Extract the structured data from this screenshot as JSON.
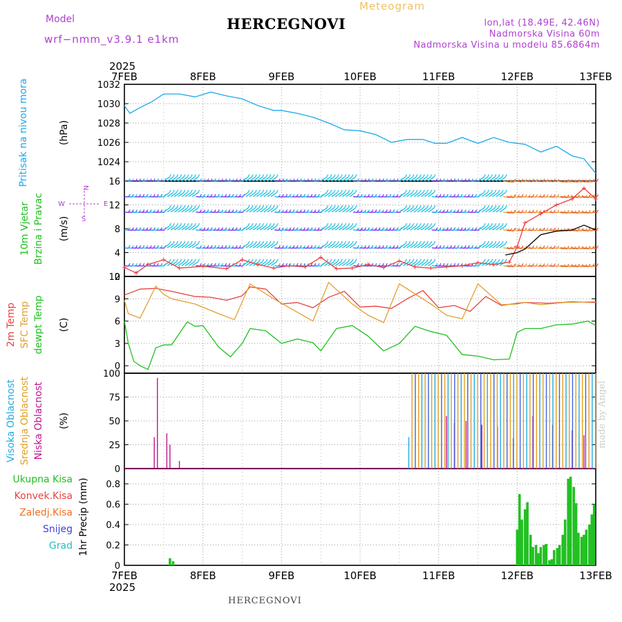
{
  "header": {
    "title": "HERCEGNOVI",
    "subtitle": "Meteogram",
    "model_label": "Model",
    "model_name": "wrf−nmm_v3.9.1 e1km",
    "location_lines": [
      "lon,lat (18.49E, 42.46N)",
      "Nadmorska Visina 60m",
      "Nadmorska Visina u modelu 85.6864m"
    ],
    "footer": "HERCEGNOVI",
    "credit": "made by Angel"
  },
  "time_axis": {
    "year": "2025",
    "ticks": [
      "7FEB",
      "8FEB",
      "9FEB",
      "10FEB",
      "11FEB",
      "12FEB",
      "13FEB"
    ],
    "range_days": [
      0,
      6
    ]
  },
  "colors": {
    "pressure": "#1ba8e8",
    "temp2m": "#e84040",
    "sfc": "#e0a030",
    "dew": "#20c020",
    "precip": "#22c022",
    "high_cloud": "#22aadd",
    "mid_cloud": "#e0a020",
    "low_cloud": "#c0158f",
    "wind_speed": "#e84040",
    "gust": "#000000"
  },
  "chart_data": [
    {
      "type": "line",
      "title": "",
      "ylabels": [
        {
          "text": "Pritisak na nivou mora",
          "color": "#1ba8e8"
        }
      ],
      "unit": "(hPa)",
      "ylim": [
        1022,
        1032
      ],
      "yticks": [
        1024,
        1026,
        1028,
        1030,
        1032
      ],
      "grid": true,
      "series": [
        {
          "color": "#1ba8e8",
          "x": [
            0,
            0.07,
            0.2,
            0.35,
            0.5,
            0.7,
            0.9,
            1.1,
            1.3,
            1.5,
            1.7,
            1.9,
            2.0,
            2.2,
            2.4,
            2.6,
            2.8,
            3.0,
            3.2,
            3.4,
            3.6,
            3.8,
            3.95,
            4.1,
            4.3,
            4.5,
            4.7,
            4.9,
            5.1,
            5.3,
            5.5,
            5.7,
            5.85,
            6.0
          ],
          "y": [
            1029.8,
            1029.0,
            1029.6,
            1030.2,
            1031.0,
            1031.0,
            1030.7,
            1031.2,
            1030.8,
            1030.5,
            1029.8,
            1029.3,
            1029.3,
            1029.0,
            1028.6,
            1028.0,
            1027.3,
            1027.2,
            1026.8,
            1026.0,
            1026.3,
            1026.3,
            1025.9,
            1025.9,
            1026.5,
            1025.9,
            1026.5,
            1026.0,
            1025.8,
            1025.0,
            1025.6,
            1024.6,
            1024.3,
            1022.8
          ]
        }
      ]
    },
    {
      "type": "line",
      "title": "",
      "ylabels": [
        {
          "text": "10m Vjetar",
          "color": "#20c020"
        },
        {
          "text": "Brzina i Pravac",
          "color": "#20c020"
        }
      ],
      "unit": "(m/s)",
      "compass": [
        "N",
        "E",
        "S",
        "W"
      ],
      "ylim": [
        0,
        16
      ],
      "yticks": [
        0,
        4,
        8,
        12,
        16
      ],
      "grid": true,
      "barb_rows": [
        1.8,
        4.8,
        7.8,
        10.8,
        13.4,
        16
      ],
      "series": [
        {
          "color": "#e84040",
          "markers": "plus",
          "x": [
            0,
            0.15,
            0.3,
            0.5,
            0.7,
            1.0,
            1.3,
            1.5,
            1.7,
            1.9,
            2.1,
            2.3,
            2.5,
            2.7,
            2.9,
            3.1,
            3.3,
            3.5,
            3.7,
            3.9,
            4.1,
            4.3,
            4.5,
            4.7,
            4.9,
            5.0,
            5.1,
            5.3,
            5.5,
            5.7,
            5.85,
            6.0
          ],
          "y": [
            1.5,
            0.6,
            2.0,
            2.8,
            1.4,
            1.7,
            1.3,
            2.8,
            2.0,
            1.4,
            1.8,
            1.6,
            3.2,
            1.3,
            1.4,
            2.0,
            1.5,
            2.6,
            1.6,
            1.4,
            1.6,
            1.8,
            2.3,
            2.0,
            2.4,
            5.0,
            9.0,
            10.5,
            12.0,
            13.0,
            14.8,
            13.0
          ]
        },
        {
          "color": "#000000",
          "markers": "none",
          "x": [
            4.85,
            5.0,
            5.1,
            5.3,
            5.5,
            5.7,
            5.85,
            6.0
          ],
          "y": [
            3.6,
            4.0,
            4.6,
            7.0,
            7.6,
            7.8,
            8.6,
            7.8
          ]
        }
      ]
    },
    {
      "type": "line",
      "title": "",
      "ylabels": [
        {
          "text": "2m Temp",
          "color": "#e84040"
        },
        {
          "text": "SFC Temp",
          "color": "#e0a030"
        },
        {
          "text": "dewpt Temp",
          "color": "#20c020"
        }
      ],
      "unit": "(C)",
      "ylim": [
        -1,
        12
      ],
      "yticks": [
        0,
        3,
        6,
        9,
        12
      ],
      "grid": true,
      "series": [
        {
          "color": "#e84040",
          "x": [
            0,
            0.2,
            0.4,
            0.6,
            0.9,
            1.1,
            1.3,
            1.5,
            1.6,
            1.8,
            2.0,
            2.2,
            2.4,
            2.6,
            2.8,
            3.0,
            3.2,
            3.4,
            3.6,
            3.8,
            4.0,
            4.2,
            4.4,
            4.6,
            4.8,
            5.0,
            5.1,
            5.4,
            5.7,
            6.0
          ],
          "y": [
            9.5,
            10.3,
            10.4,
            10.0,
            9.3,
            9.2,
            8.8,
            9.4,
            10.6,
            10.3,
            8.3,
            8.5,
            7.8,
            9.2,
            10.0,
            7.9,
            8.0,
            7.7,
            9.0,
            10.1,
            7.8,
            8.1,
            7.3,
            9.3,
            8.1,
            8.4,
            8.5,
            8.4,
            8.6,
            8.5
          ]
        },
        {
          "color": "#e0a030",
          "x": [
            0,
            0.05,
            0.2,
            0.4,
            0.5,
            0.6,
            0.9,
            1.2,
            1.4,
            1.6,
            1.9,
            2.2,
            2.4,
            2.6,
            2.9,
            3.1,
            3.3,
            3.5,
            3.9,
            4.1,
            4.3,
            4.5,
            4.8,
            5.0,
            5.1,
            5.3,
            5.6,
            6.0
          ],
          "y": [
            8.8,
            7.0,
            6.4,
            10.7,
            9.6,
            9.0,
            8.3,
            7.0,
            6.2,
            11.0,
            9.0,
            7.2,
            6.0,
            11.2,
            8.3,
            6.8,
            5.8,
            11.0,
            8.3,
            6.8,
            6.3,
            11.0,
            8.2,
            8.3,
            8.5,
            8.2,
            8.5,
            8.6
          ]
        },
        {
          "color": "#20c020",
          "x": [
            0,
            0.05,
            0.12,
            0.2,
            0.3,
            0.4,
            0.5,
            0.6,
            0.8,
            0.9,
            1.0,
            1.2,
            1.35,
            1.5,
            1.6,
            1.8,
            2.0,
            2.2,
            2.4,
            2.5,
            2.7,
            2.9,
            3.1,
            3.3,
            3.5,
            3.7,
            3.9,
            4.1,
            4.3,
            4.5,
            4.7,
            4.9,
            5.0,
            5.1,
            5.3,
            5.5,
            5.7,
            5.9,
            6.0
          ],
          "y": [
            6.0,
            3.0,
            0.6,
            0.0,
            -0.5,
            2.4,
            2.8,
            2.8,
            5.9,
            5.3,
            5.4,
            2.5,
            1.2,
            3.0,
            5.0,
            4.7,
            3.0,
            3.6,
            3.1,
            2.0,
            5.0,
            5.4,
            4.0,
            2.0,
            3.0,
            5.3,
            4.6,
            4.1,
            1.5,
            1.3,
            0.8,
            0.9,
            4.5,
            5.0,
            5.0,
            5.5,
            5.6,
            6.0,
            5.4
          ]
        }
      ]
    },
    {
      "type": "bar",
      "title": "",
      "ylabels": [
        {
          "text": "Visoka Oblacnost",
          "color": "#22aadd"
        },
        {
          "text": "Srednja Oblacnost",
          "color": "#e0a020"
        },
        {
          "text": "Niska Oblacnost",
          "color": "#c0158f"
        }
      ],
      "unit": "(%)",
      "ylim": [
        0,
        100
      ],
      "yticks": [
        0,
        25,
        50,
        75,
        100
      ],
      "grid": true,
      "low_cloud": {
        "x": [
          0.38,
          0.42,
          0.54,
          0.58,
          0.7,
          4.1,
          4.2,
          4.35,
          4.55,
          4.75,
          4.95,
          5.2,
          5.45,
          5.7,
          5.85
        ],
        "values": [
          33,
          95,
          37,
          25,
          8,
          55,
          48,
          50,
          46,
          44,
          32,
          55,
          46,
          40,
          35
        ]
      },
      "high_cloud_start": 3.62,
      "high_cloud_level": 100,
      "mid_cloud_level": 100,
      "cloud_bar_step": 0.0417
    },
    {
      "type": "bar",
      "title": "",
      "ylabels": [
        {
          "text": "Ukupna Kisa",
          "color": "#22c022"
        },
        {
          "text": "Konvek.Kisa",
          "color": "#e84040"
        },
        {
          "text": "Zaledj.Kisa",
          "color": "#f07020"
        },
        {
          "text": "Snijeg",
          "color": "#4040e0"
        },
        {
          "text": "Grad",
          "color": "#20c0c0"
        }
      ],
      "unit": "1hr Precip (mm)",
      "ylim": [
        0,
        0.95
      ],
      "yticks": [
        0,
        0.2,
        0.4,
        0.6,
        0.8
      ],
      "grid": true,
      "x": [
        0.58,
        0.62,
        5.0,
        5.03,
        5.06,
        5.1,
        5.13,
        5.17,
        5.2,
        5.24,
        5.27,
        5.3,
        5.34,
        5.37,
        5.41,
        5.44,
        5.47,
        5.51,
        5.54,
        5.58,
        5.61,
        5.65,
        5.68,
        5.72,
        5.75,
        5.78,
        5.82,
        5.85,
        5.88,
        5.92,
        5.95,
        5.98
      ],
      "values": [
        0.07,
        0.04,
        0.35,
        0.7,
        0.45,
        0.55,
        0.62,
        0.3,
        0.18,
        0.2,
        0.12,
        0.18,
        0.2,
        0.21,
        0.05,
        0.06,
        0.15,
        0.17,
        0.2,
        0.3,
        0.45,
        0.85,
        0.87,
        0.77,
        0.61,
        0.32,
        0.28,
        0.3,
        0.35,
        0.4,
        0.5,
        0.6
      ]
    }
  ]
}
